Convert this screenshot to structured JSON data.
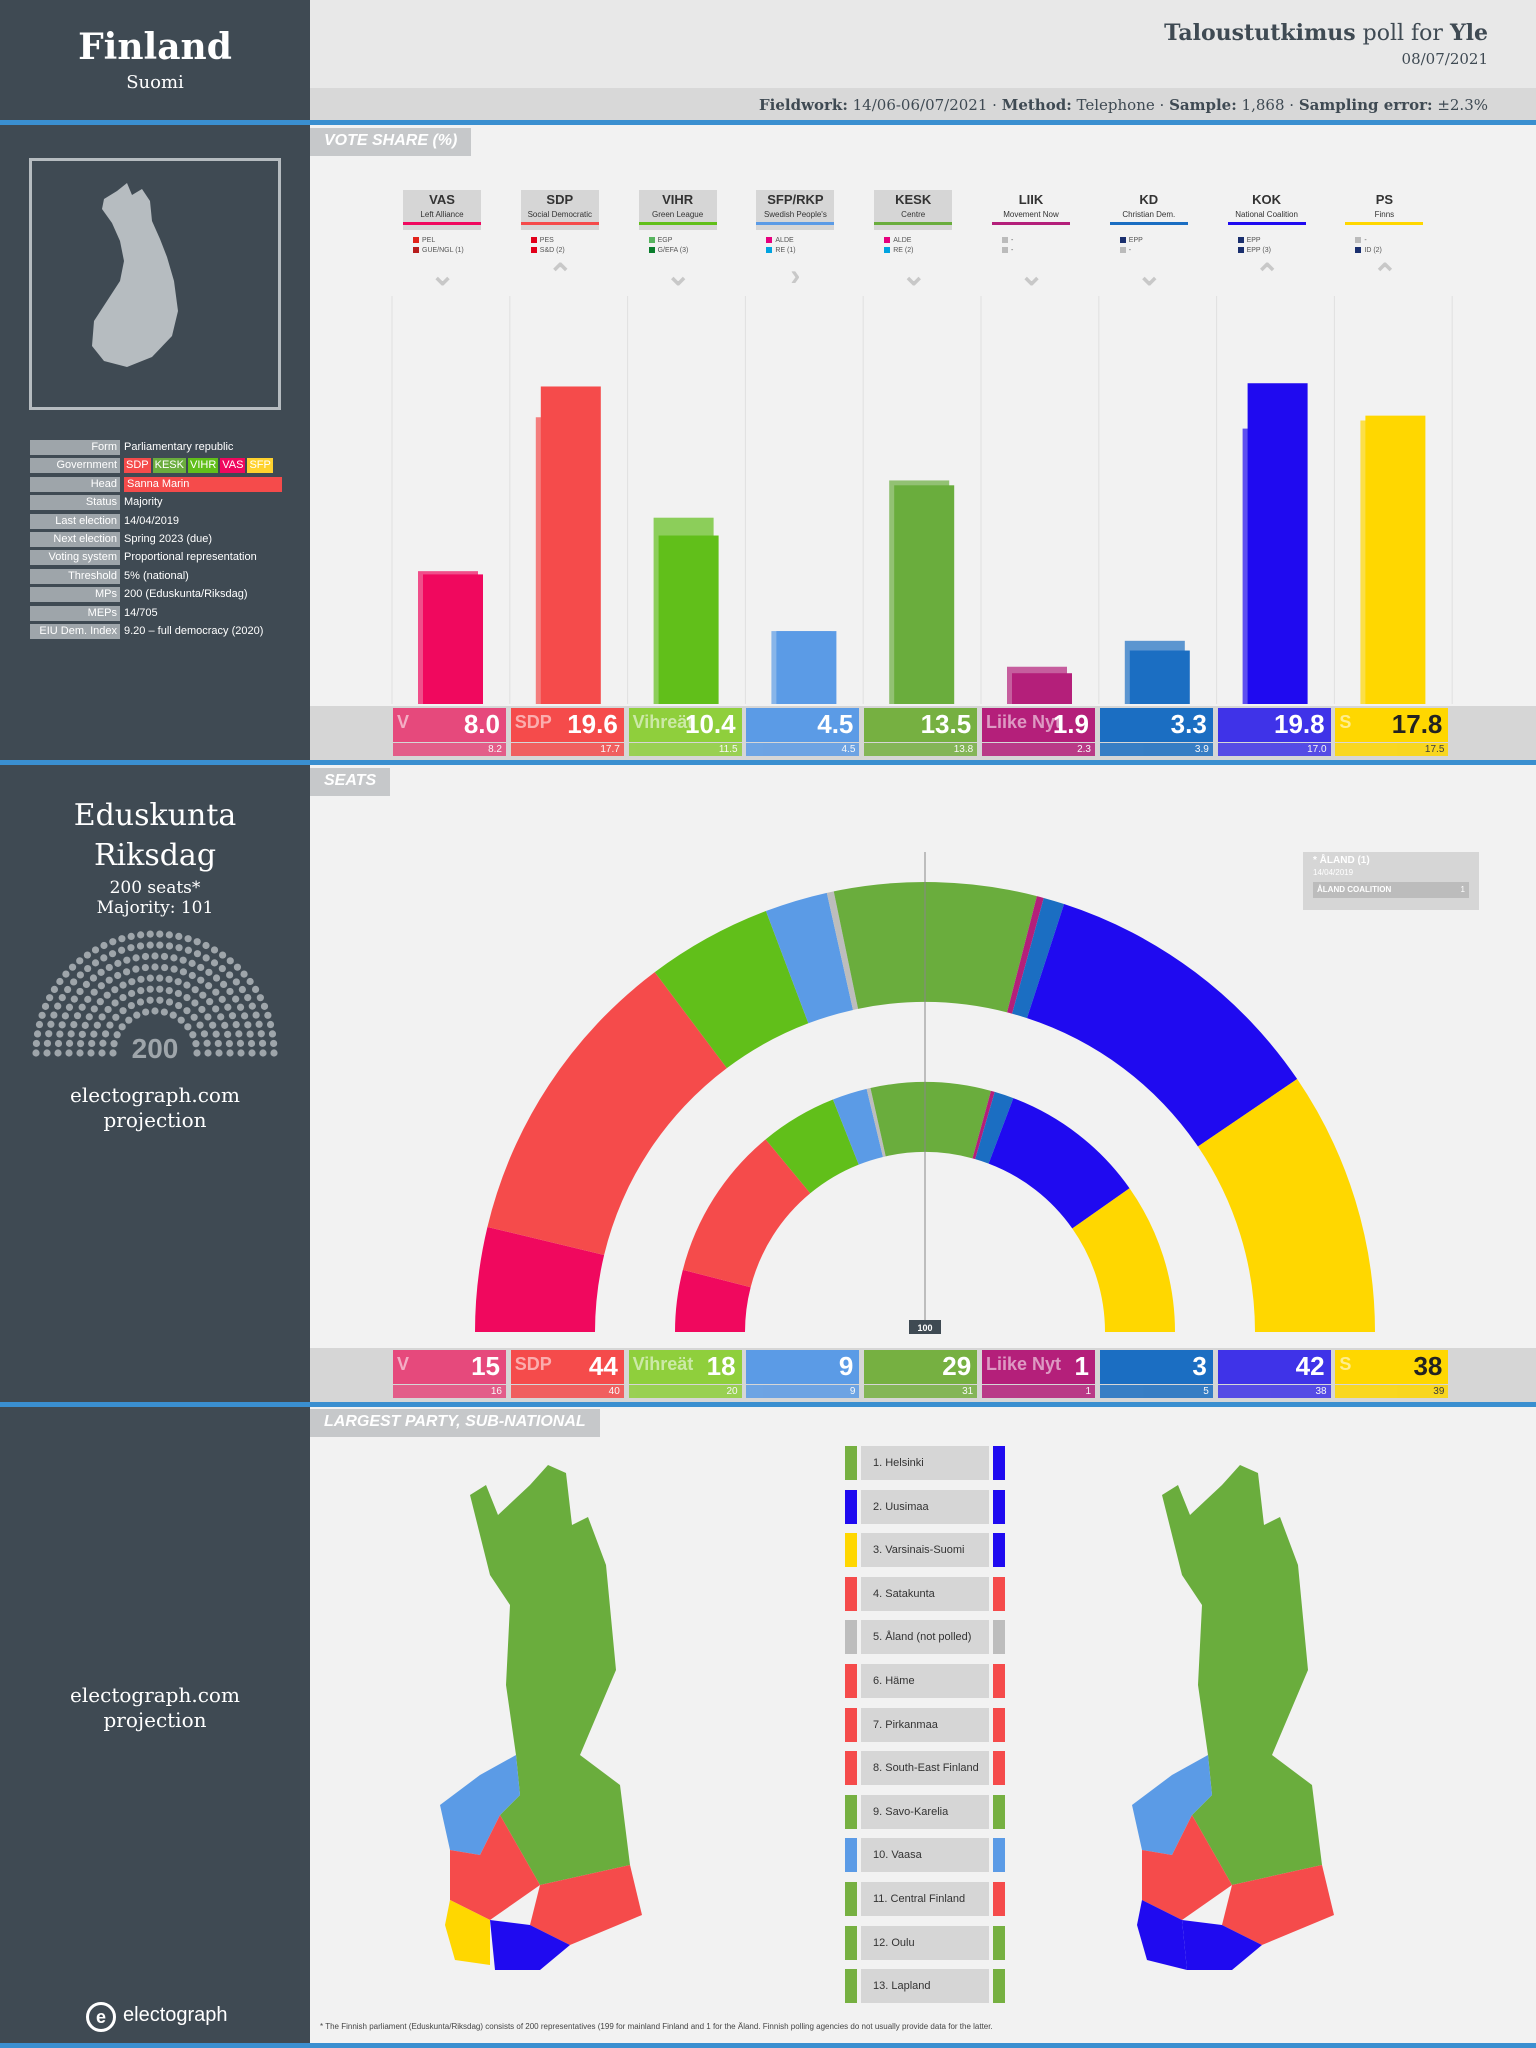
{
  "header": {
    "country": "Finland",
    "country_local": "Suomi",
    "pollster": "Taloustutkimus",
    "poll_for": "poll for",
    "client": "Yle",
    "date": "08/07/2021",
    "fw_label": "Fieldwork:",
    "fw_value": "14/06-06/07/2021",
    "method_label": "Method:",
    "method_value": "Telephone",
    "sample_label": "Sample:",
    "sample_value": "1,868",
    "err_label": "Sampling error:",
    "err_value": "±2.3%"
  },
  "info": [
    {
      "k": "Form",
      "v": "Parliamentary republic"
    },
    {
      "k": "Government",
      "v": ""
    },
    {
      "k": "Head",
      "v": "Sanna Marin"
    },
    {
      "k": "Status",
      "v": "Majority"
    },
    {
      "k": "Last election",
      "v": "14/04/2019"
    },
    {
      "k": "Next election",
      "v": "Spring 2023 (due)"
    },
    {
      "k": "Voting system",
      "v": "Proportional representation"
    },
    {
      "k": "Threshold",
      "v": "5% (national)"
    },
    {
      "k": "MPs",
      "v": "200 (Eduskunta/Riksdag)"
    },
    {
      "k": "MEPs",
      "v": "14/705"
    },
    {
      "k": "EIU Dem. Index",
      "v": "9.20 – full democracy (2020)"
    }
  ],
  "government": [
    {
      "n": "SDP",
      "c": "#f54b4b"
    },
    {
      "n": "KESK",
      "c": "#6aad3d"
    },
    {
      "n": "VIHR",
      "c": "#61bf1a"
    },
    {
      "n": "VAS",
      "c": "#f0085e"
    },
    {
      "n": "SFP",
      "c": "#ffd22e"
    }
  ],
  "sections": {
    "vote": "VOTE SHARE (%)",
    "seats": "SEATS",
    "sub": "LARGEST PARTY, SUB-NATIONAL"
  },
  "parliament": {
    "name1": "Eduskunta",
    "name2": "Riksdag",
    "seats": "200 seats*",
    "majority": "Majority: 101",
    "total": "200",
    "source": "electograph.com",
    "projection": "projection",
    "mid": "100"
  },
  "map_source": "electograph.com",
  "map_projection": "projection",
  "aland": {
    "title": "* ÅLAND (1)",
    "date": "14/04/2019",
    "party": "ÅLAND COALITION",
    "seats": "1"
  },
  "footnote": "* The Finnish parliament (Eduskunta/Riksdag) consists of 200 representatives (199 for mainland Finland and 1 for the Åland. Finnish polling agencies do not usually provide data for the latter.",
  "logo": "electograph",
  "parties": [
    {
      "ab": "VAS",
      "name": "Left Alliance",
      "color": "#f0085e",
      "tile": "#e6497c",
      "eu": [
        [
          "PEL",
          "#e2231a"
        ],
        [
          "GUE/NGL (1)",
          "#b71c1c"
        ]
      ],
      "trend": "down",
      "logo": "V",
      "vote": 8.0,
      "prev": 8.2,
      "seats": 15,
      "seats_prev": 16
    },
    {
      "ab": "SDP",
      "name": "Social Democratic",
      "color": "#f54b4b",
      "tile": "#f54b4b",
      "eu": [
        [
          "PES",
          "#e2001a"
        ],
        [
          "S&D (2)",
          "#e2001a"
        ]
      ],
      "trend": "up",
      "logo": "SDP",
      "vote": 19.6,
      "prev": 17.7,
      "seats": 44,
      "seats_prev": 40
    },
    {
      "ab": "VIHR",
      "name": "Green League",
      "color": "#61bf1a",
      "tile": "#8fcf3c",
      "eu": [
        [
          "EGP",
          "#57b45f"
        ],
        [
          "G/EFA (3)",
          "#0a7d2c"
        ]
      ],
      "trend": "down",
      "logo": "Vihreät",
      "vote": 10.4,
      "prev": 11.5,
      "seats": 18,
      "seats_prev": 20
    },
    {
      "ab": "SFP/RKP",
      "name": "Swedish People's",
      "color": "#5b9be6",
      "tile": "#5b9be6",
      "eu": [
        [
          "ALDE",
          "#e6007e"
        ],
        [
          "RE (1)",
          "#00a3e0"
        ]
      ],
      "trend": "right",
      "logo": "",
      "vote": 4.5,
      "prev": 4.5,
      "seats": 9,
      "seats_prev": 9
    },
    {
      "ab": "KESK",
      "name": "Centre",
      "color": "#6aad3d",
      "tile": "#76b041",
      "eu": [
        [
          "ALDE",
          "#e6007e"
        ],
        [
          "RE (2)",
          "#00a3e0"
        ]
      ],
      "trend": "down",
      "logo": "",
      "vote": 13.5,
      "prev": 13.8,
      "seats": 29,
      "seats_prev": 31
    },
    {
      "ab": "LIIK",
      "name": "Movement Now",
      "color": "#b41f7a",
      "tile": "#b41f7a",
      "eu": [
        [
          "-",
          "#bbbbbb"
        ],
        [
          "-",
          "#bbbbbb"
        ]
      ],
      "trend": "down",
      "logo": "Liike Nyt",
      "vote": 1.9,
      "prev": 2.3,
      "seats": 1,
      "seats_prev": 1
    },
    {
      "ab": "KD",
      "name": "Christian Dem.",
      "color": "#1b6ec2",
      "tile": "#1b6ec2",
      "eu": [
        [
          "EPP",
          "#1a2f6e"
        ],
        [
          "-",
          "#bbbbbb"
        ]
      ],
      "trend": "down",
      "logo": "",
      "vote": 3.3,
      "prev": 3.9,
      "seats": 3,
      "seats_prev": 5
    },
    {
      "ab": "KOK",
      "name": "National Coalition",
      "color": "#1f0af0",
      "tile": "#3f33e8",
      "eu": [
        [
          "EPP",
          "#1a2f6e"
        ],
        [
          "EPP (3)",
          "#1a2f6e"
        ]
      ],
      "trend": "up",
      "logo": "",
      "vote": 19.8,
      "prev": 17.0,
      "seats": 42,
      "seats_prev": 38
    },
    {
      "ab": "PS",
      "name": "Finns",
      "color": "#ffd700",
      "tile": "#ffd700",
      "eu": [
        [
          "-",
          "#bbbbbb"
        ],
        [
          "ID (2)",
          "#1a2f6e"
        ]
      ],
      "trend": "up",
      "logo": "S",
      "vote": 17.8,
      "prev": 17.5,
      "seats": 38,
      "seats_prev": 39
    }
  ],
  "chart_data": {
    "type": "bar",
    "categories": [
      "VAS",
      "SDP",
      "VIHR",
      "SFP/RKP",
      "KESK",
      "LIIK",
      "KD",
      "KOK",
      "PS"
    ],
    "series": [
      {
        "name": "",
        "values": [
          8.0,
          19.6,
          10.4,
          4.5,
          13.5,
          1.9,
          3.3,
          19.8,
          17.8
        ]
      },
      {
        "name": "",
        "values": [
          8.2,
          17.7,
          11.5,
          4.5,
          13.8,
          2.3,
          3.9,
          17.0,
          17.5
        ]
      }
    ],
    "seats": [
      15,
      44,
      18,
      9,
      29,
      1,
      3,
      42,
      38
    ],
    "seats_prev": [
      16,
      40,
      20,
      9,
      31,
      1,
      5,
      38,
      39
    ]
  },
  "regions": [
    {
      "n": "1. Helsinki",
      "l": "#76b041",
      "r": "#1f0af0"
    },
    {
      "n": "2. Uusimaa",
      "l": "#1f0af0",
      "r": "#1f0af0"
    },
    {
      "n": "3. Varsinais-Suomi",
      "l": "#ffd700",
      "r": "#1f0af0"
    },
    {
      "n": "4. Satakunta",
      "l": "#f54b4b",
      "r": "#f54b4b"
    },
    {
      "n": "5. Åland (not polled)",
      "l": "#bdbdbd",
      "r": "#bdbdbd"
    },
    {
      "n": "6. Häme",
      "l": "#f54b4b",
      "r": "#f54b4b"
    },
    {
      "n": "7. Pirkanmaa",
      "l": "#f54b4b",
      "r": "#f54b4b"
    },
    {
      "n": "8. South-East Finland",
      "l": "#f54b4b",
      "r": "#f54b4b"
    },
    {
      "n": "9. Savo-Karelia",
      "l": "#76b041",
      "r": "#76b041"
    },
    {
      "n": "10. Vaasa",
      "l": "#5b9be6",
      "r": "#5b9be6"
    },
    {
      "n": "11. Central Finland",
      "l": "#76b041",
      "r": "#f54b4b"
    },
    {
      "n": "12. Oulu",
      "l": "#76b041",
      "r": "#76b041"
    },
    {
      "n": "13. Lapland",
      "l": "#76b041",
      "r": "#76b041"
    }
  ]
}
